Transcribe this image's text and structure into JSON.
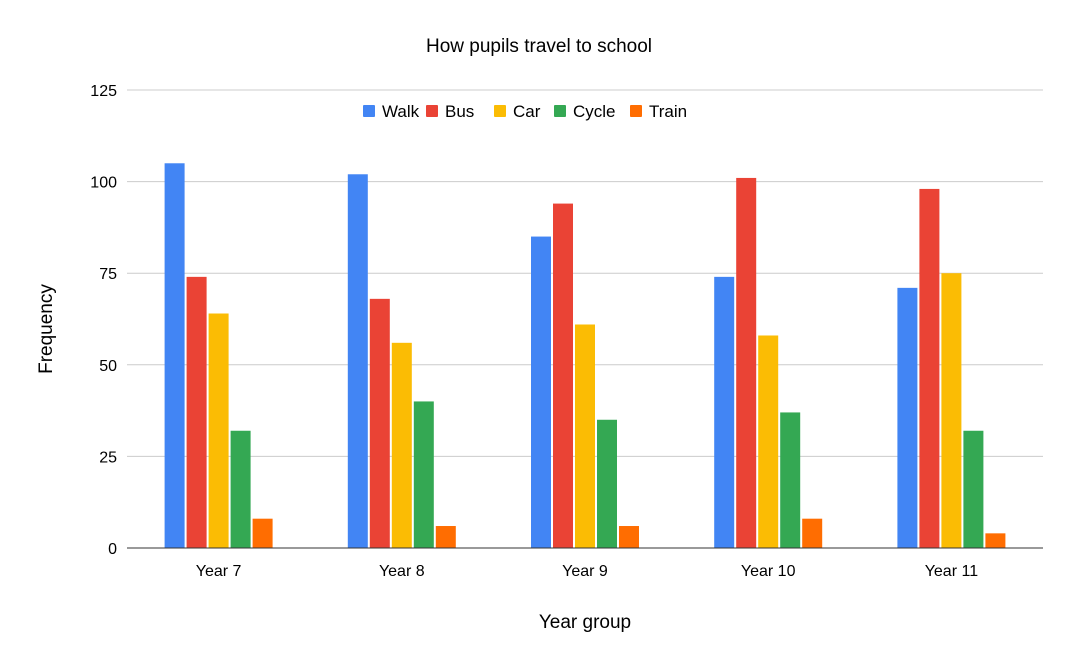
{
  "chart_data": {
    "type": "bar",
    "title": "How pupils travel to school",
    "xlabel": "Year group",
    "ylabel": "Frequency",
    "ylim": [
      0,
      125
    ],
    "yticks": [
      "0",
      "25",
      "50",
      "75",
      "100",
      "125"
    ],
    "grid": true,
    "legend_position": "top",
    "categories": [
      "Year 7",
      "Year 8",
      "Year 9",
      "Year 10",
      "Year 11"
    ],
    "series": [
      {
        "name": "Walk",
        "color": "#4285F4",
        "values": [
          105,
          102,
          85,
          74,
          71
        ]
      },
      {
        "name": "Bus",
        "color": "#EA4335",
        "values": [
          74,
          68,
          94,
          101,
          98
        ]
      },
      {
        "name": "Car",
        "color": "#FBBC04",
        "values": [
          64,
          56,
          61,
          58,
          75
        ]
      },
      {
        "name": "Cycle",
        "color": "#34A853",
        "values": [
          32,
          40,
          35,
          37,
          32
        ]
      },
      {
        "name": "Train",
        "color": "#FF6D01",
        "values": [
          8,
          6,
          6,
          8,
          4
        ]
      }
    ]
  }
}
